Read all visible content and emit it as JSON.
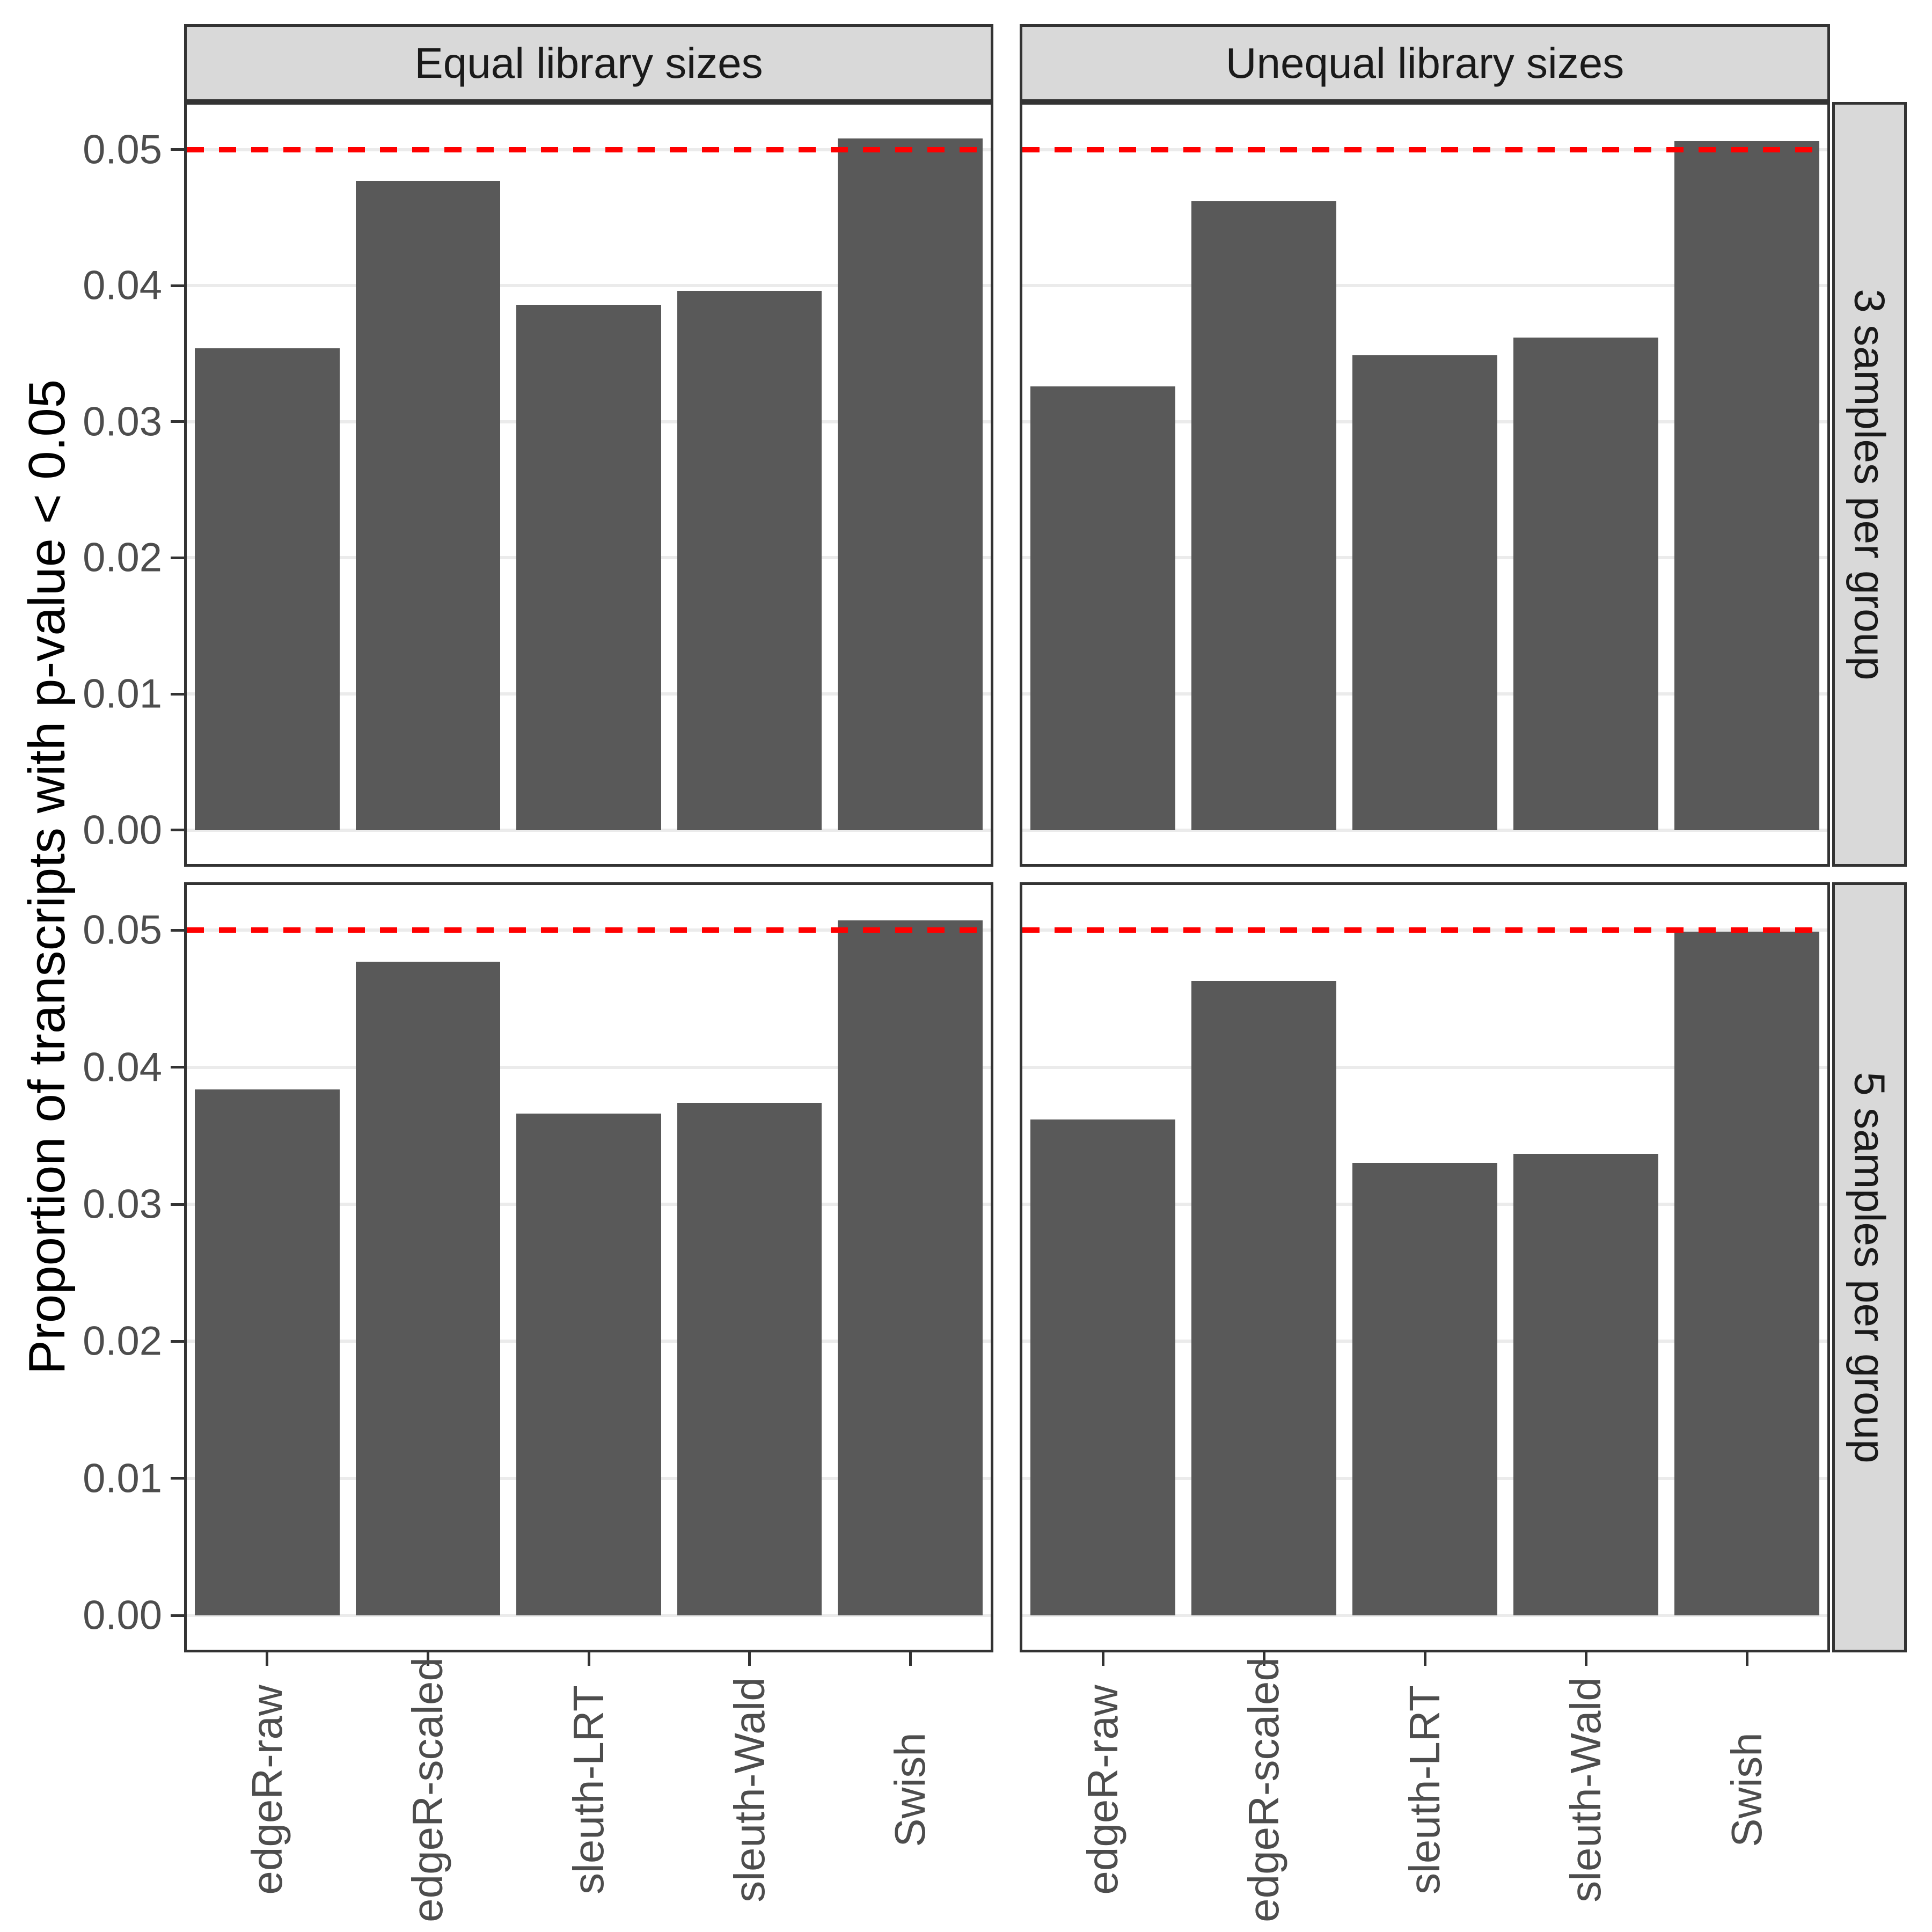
{
  "figure": {
    "y_axis_title": "Proportion of transcripts with p-value < 0.05",
    "col_facets": [
      "Equal library sizes",
      "Unequal library sizes"
    ],
    "row_facets": [
      "3 samples per group",
      "5 samples per group"
    ],
    "y_tick_labels": [
      "0.00",
      "0.01",
      "0.02",
      "0.03",
      "0.04",
      "0.05"
    ],
    "colors": {
      "bar": "#595959",
      "strip_bg": "#D9D9D9",
      "strip_border": "#333333",
      "panel_border": "#333333",
      "gridline": "#EBEBEB",
      "reference_line": "#FF0000",
      "tick_mark": "#333333",
      "tick_label": "#4D4D4D",
      "axis_title": "#000000",
      "strip_text": "#1A1A1A"
    }
  },
  "chart_data": {
    "type": "bar",
    "categories": [
      "edgeR-raw",
      "edgeR-scaled",
      "sleuth-LRT",
      "sleuth-Wald",
      "Swish"
    ],
    "facet_rows": [
      "3 samples per group",
      "5 samples per group"
    ],
    "facet_cols": [
      "Equal library sizes",
      "Unequal library sizes"
    ],
    "facets": [
      {
        "row": "3 samples per group",
        "col": "Equal library sizes",
        "values": [
          0.0354,
          0.0477,
          0.0386,
          0.0396,
          0.0508
        ]
      },
      {
        "row": "3 samples per group",
        "col": "Unequal library sizes",
        "values": [
          0.0326,
          0.0462,
          0.0349,
          0.0362,
          0.0506
        ]
      },
      {
        "row": "5 samples per group",
        "col": "Equal library sizes",
        "values": [
          0.0384,
          0.0477,
          0.0366,
          0.0374,
          0.0507
        ]
      },
      {
        "row": "5 samples per group",
        "col": "Unequal library sizes",
        "values": [
          0.0362,
          0.0463,
          0.033,
          0.0337,
          0.0499
        ]
      }
    ],
    "title": "",
    "xlabel": "",
    "ylabel": "Proportion of transcripts with p-value < 0.05",
    "yticks": [
      0,
      0.01,
      0.02,
      0.03,
      0.04,
      0.05
    ],
    "ylim": [
      0,
      0.05
    ],
    "reference_line": {
      "y": 0.05,
      "color": "#FF0000",
      "style": "dashed"
    },
    "grid": "major-horizontal",
    "legend": "none",
    "bar_color": "#595959"
  }
}
